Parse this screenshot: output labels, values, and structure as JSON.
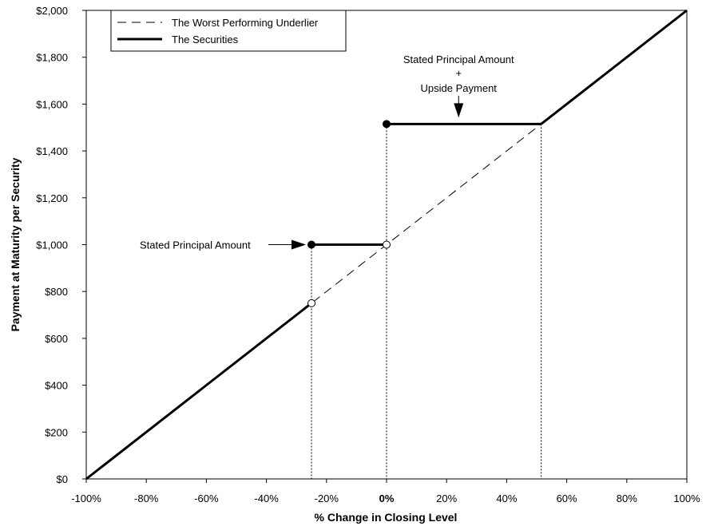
{
  "chart_data": {
    "type": "line",
    "xlabel": "% Change in Closing Level",
    "ylabel": "Payment at Maturity per Security",
    "xlim": [
      -100,
      100
    ],
    "ylim": [
      0,
      2000
    ],
    "x_ticks": [
      -100,
      -80,
      -60,
      -40,
      -20,
      0,
      20,
      40,
      60,
      80,
      100
    ],
    "x_tick_labels": [
      "-100%",
      "-80%",
      "-60%",
      "-40%",
      "-20%",
      "0%",
      "20%",
      "40%",
      "60%",
      "80%",
      "100%"
    ],
    "y_ticks": [
      0,
      200,
      400,
      600,
      800,
      1000,
      1200,
      1400,
      1600,
      1800,
      2000
    ],
    "y_tick_labels": [
      "$0",
      "$200",
      "$400",
      "$600",
      "$800",
      "$1,000",
      "$1,200",
      "$1,400",
      "$1,600",
      "$1,800",
      "$2,000"
    ],
    "legend": {
      "placement": "top-left",
      "entries": [
        "The Worst Performing Underlier",
        "The Securities"
      ]
    },
    "series": [
      {
        "name": "The Worst Performing Underlier",
        "style": "dashed",
        "color": "#000000",
        "x": [
          -100,
          100
        ],
        "y": [
          0,
          2000
        ]
      },
      {
        "name": "The Securities",
        "style": "solid",
        "color": "#000000",
        "segments": [
          {
            "x": [
              -100,
              -25
            ],
            "y": [
              0,
              750
            ]
          },
          {
            "x": [
              -25,
              0
            ],
            "y": [
              1000,
              1000
            ]
          },
          {
            "x": [
              0,
              51.5
            ],
            "y": [
              1515,
              1515
            ]
          },
          {
            "x": [
              51.5,
              100
            ],
            "y": [
              1515,
              2000
            ]
          }
        ],
        "filled_points": [
          {
            "x": -25,
            "y": 1000
          },
          {
            "x": 0,
            "y": 1515
          }
        ],
        "open_points": [
          {
            "x": -25,
            "y": 750
          },
          {
            "x": 0,
            "y": 1000
          }
        ]
      }
    ],
    "reference_lines_x": [
      -25,
      0,
      51.5
    ],
    "annotations": [
      {
        "lines": [
          "Stated Principal Amount"
        ],
        "points_to": {
          "x": -25,
          "y": 1000
        }
      },
      {
        "lines": [
          "Stated Principal Amount",
          "+",
          "Upside Payment"
        ],
        "points_to": {
          "x": 24,
          "y": 1515
        }
      }
    ]
  }
}
